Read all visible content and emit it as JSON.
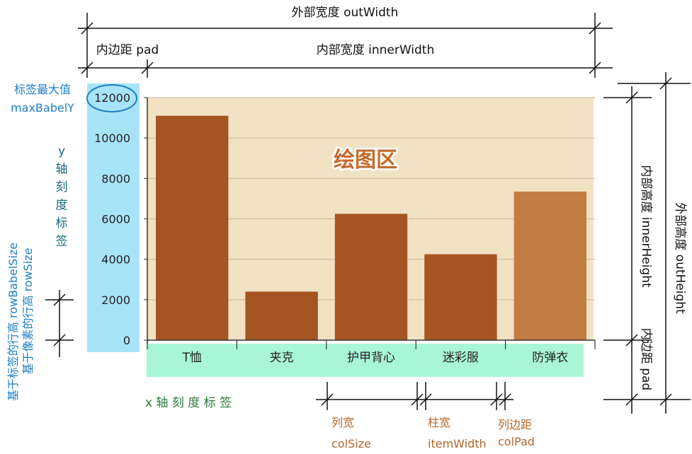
{
  "labels": {
    "outer_width": "外部宽度 outWidth",
    "pad_left": "内边距 pad",
    "inner_width": "内部宽度 innerWidth",
    "max_label_cn": "标签最大值",
    "max_label_en": "maxBabelY",
    "y_axis_chars": [
      "y",
      "轴",
      "刻",
      "度",
      "标",
      "签"
    ],
    "plot_area": "绘图区",
    "row_label_1": "基于标签的行高 rowBabelSize",
    "row_label_2": "基于像素的行高 rowSize",
    "inner_height": "内部高度 innerHeight",
    "outer_height": "外部高度 outHeight",
    "pad_bottom": "内边距 pad",
    "x_axis_label": "x 轴 刻 度 标 签",
    "col_size_cn": "列宽",
    "col_size_en": "colSize",
    "item_width_cn": "柱宽",
    "item_width_en": "itemWidth",
    "col_pad_cn": "列边距",
    "col_pad_en": "colPad"
  },
  "colors": {
    "plot_bg": "#f2e2c4",
    "bar": "#a65522",
    "bar_last": "#c47d44",
    "y_label_bg": "#a8e4f8",
    "x_label_bg": "#a8f5d8",
    "blue_text": "#1e7fc4",
    "green_text": "#2b7a3c",
    "orange_text": "#b5662a"
  },
  "chart_data": {
    "type": "bar",
    "categories": [
      "T恤",
      "夹克",
      "护甲背心",
      "迷彩服",
      "防弹衣"
    ],
    "values": [
      11100,
      2400,
      6250,
      4250,
      7350
    ],
    "y_ticks": [
      "0",
      "2000",
      "4000",
      "6000",
      "8000",
      "10000",
      "12000"
    ],
    "ylim": [
      0,
      12000
    ],
    "grid": true
  }
}
